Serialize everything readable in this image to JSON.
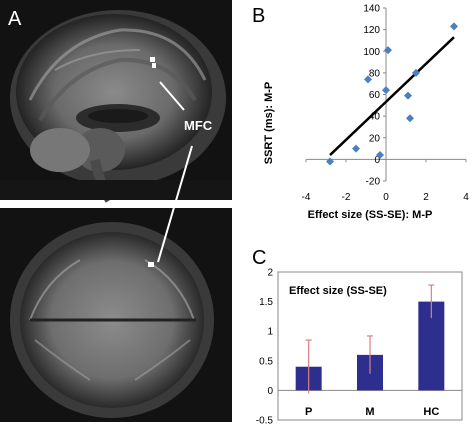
{
  "panels": {
    "a": {
      "letter": "A",
      "region_label": "MFC"
    },
    "b": {
      "letter": "B"
    },
    "c": {
      "letter": "C"
    }
  },
  "colors": {
    "scatter_point": "#4a7fc1",
    "regression_line": "#000000",
    "bar_fill": "#2e2e8f",
    "error_bar": "#d98080",
    "mri_label": "#ffffff"
  },
  "chart_data": [
    {
      "id": "B",
      "type": "scatter",
      "xlabel": "Effect size  (SS-SE): M-P",
      "ylabel": "SSRT (ms): M-P",
      "xlim": [
        -4,
        4
      ],
      "ylim": [
        -20,
        140
      ],
      "x_ticks": [
        -4,
        -2,
        0,
        2,
        4
      ],
      "y_ticks": [
        -20,
        0,
        20,
        40,
        60,
        80,
        100,
        120,
        140
      ],
      "grid": false,
      "points": [
        {
          "x": -2.8,
          "y": -2
        },
        {
          "x": -1.5,
          "y": 10
        },
        {
          "x": -0.9,
          "y": 74
        },
        {
          "x": -0.3,
          "y": 4
        },
        {
          "x": 0.0,
          "y": 64
        },
        {
          "x": 0.1,
          "y": 101
        },
        {
          "x": 1.1,
          "y": 59
        },
        {
          "x": 1.2,
          "y": 38
        },
        {
          "x": 1.5,
          "y": 80
        },
        {
          "x": 3.4,
          "y": 123
        }
      ],
      "trendline": {
        "x": [
          -2.8,
          3.4
        ],
        "y": [
          4,
          113
        ]
      }
    },
    {
      "id": "C",
      "type": "bar",
      "title": "Effect size (SS-SE)",
      "categories": [
        "P",
        "M",
        "HC"
      ],
      "values": [
        0.4,
        0.6,
        1.5
      ],
      "errors": [
        0.45,
        0.32,
        0.28
      ],
      "ylim": [
        -0.5,
        2
      ],
      "y_ticks": [
        "2",
        "1.5",
        "1",
        "0.5",
        "0",
        "-0.5"
      ],
      "grid": false
    }
  ]
}
